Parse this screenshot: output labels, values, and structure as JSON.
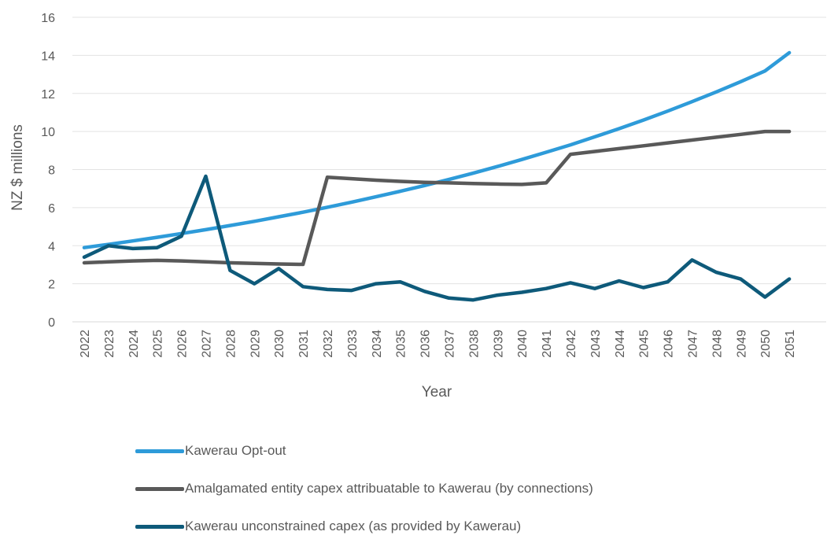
{
  "chart_data": {
    "type": "line",
    "xlabel": "Year",
    "ylabel": "NZ $ millions",
    "ylim": [
      0,
      16
    ],
    "yticks": [
      0,
      2,
      4,
      6,
      8,
      10,
      12,
      14,
      16
    ],
    "grid": "horizontal",
    "legend_position": "bottom",
    "categories": [
      "2022",
      "2023",
      "2024",
      "2025",
      "2026",
      "2027",
      "2028",
      "2029",
      "2030",
      "2031",
      "2032",
      "2033",
      "2034",
      "2035",
      "2036",
      "2037",
      "2038",
      "2039",
      "2040",
      "2041",
      "2042",
      "2043",
      "2044",
      "2045",
      "2046",
      "2047",
      "2048",
      "2049",
      "2050",
      "2051"
    ],
    "series": [
      {
        "name": "Kawerau Opt-out",
        "color": "#2E9BD9",
        "values": [
          3.9,
          4.07,
          4.25,
          4.44,
          4.64,
          4.84,
          5.06,
          5.28,
          5.52,
          5.76,
          6.02,
          6.29,
          6.57,
          6.86,
          7.16,
          7.48,
          7.81,
          8.16,
          8.53,
          8.91,
          9.3,
          9.72,
          10.15,
          10.6,
          11.07,
          11.57,
          12.08,
          12.62,
          13.18,
          14.14
        ]
      },
      {
        "name": "Amalgamated entity capex attribuatable to Kawerau (by connections)",
        "color": "#595959",
        "values": [
          3.1,
          3.15,
          3.2,
          3.23,
          3.2,
          3.15,
          3.1,
          3.07,
          3.04,
          3.02,
          7.6,
          7.52,
          7.44,
          7.38,
          7.33,
          7.3,
          7.27,
          7.24,
          7.22,
          7.3,
          8.8,
          8.95,
          9.1,
          9.25,
          9.4,
          9.55,
          9.7,
          9.85,
          10.0,
          10.0
        ]
      },
      {
        "name": "Kawerau unconstrained capex (as provided by Kawerau)",
        "color": "#0E5A7A",
        "values": [
          3.4,
          4.0,
          3.85,
          3.9,
          4.5,
          7.65,
          2.7,
          2.0,
          2.8,
          1.85,
          1.7,
          1.65,
          2.0,
          2.1,
          1.6,
          1.25,
          1.15,
          1.4,
          1.55,
          1.75,
          2.05,
          1.75,
          2.15,
          1.8,
          2.1,
          3.25,
          2.6,
          2.25,
          1.3,
          2.25
        ]
      }
    ]
  }
}
